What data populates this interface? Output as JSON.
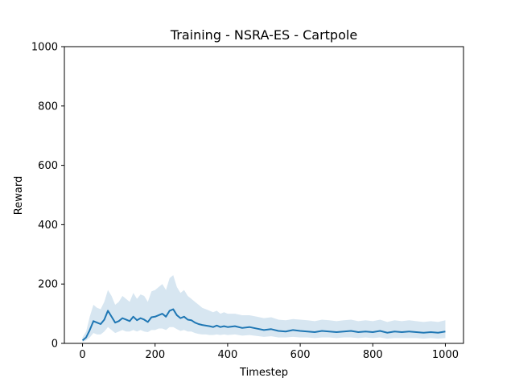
{
  "chart_data": {
    "type": "line",
    "title": "Training - NSRA-ES - Cartpole",
    "xlabel": "Timestep",
    "ylabel": "Reward",
    "xlim": [
      -50,
      1050
    ],
    "ylim": [
      0,
      1000
    ],
    "xticks": [
      0,
      200,
      400,
      600,
      800,
      1000
    ],
    "yticks": [
      0,
      200,
      400,
      600,
      800,
      1000
    ],
    "grid": false,
    "legend": "none",
    "series": [
      {
        "color": "#1f77b4",
        "band_color": "#1f77b4",
        "x": [
          0,
          10,
          20,
          30,
          40,
          50,
          60,
          70,
          80,
          90,
          100,
          110,
          120,
          130,
          140,
          150,
          160,
          170,
          180,
          190,
          200,
          210,
          220,
          230,
          240,
          250,
          260,
          270,
          280,
          290,
          300,
          310,
          320,
          330,
          340,
          350,
          360,
          370,
          380,
          390,
          400,
          420,
          440,
          460,
          480,
          500,
          520,
          540,
          560,
          580,
          600,
          620,
          640,
          660,
          680,
          700,
          720,
          740,
          760,
          780,
          800,
          820,
          840,
          860,
          880,
          900,
          920,
          940,
          960,
          980,
          1000
        ],
        "mean": [
          10,
          20,
          45,
          75,
          70,
          65,
          80,
          110,
          90,
          70,
          75,
          85,
          80,
          75,
          90,
          78,
          85,
          80,
          72,
          88,
          90,
          95,
          100,
          90,
          110,
          115,
          95,
          85,
          90,
          80,
          78,
          70,
          65,
          62,
          60,
          58,
          55,
          60,
          55,
          58,
          55,
          58,
          52,
          55,
          50,
          45,
          48,
          42,
          40,
          45,
          42,
          40,
          38,
          42,
          40,
          38,
          40,
          42,
          38,
          40,
          38,
          42,
          36,
          40,
          38,
          40,
          38,
          36,
          38,
          36,
          40
        ],
        "low": [
          5,
          10,
          20,
          35,
          30,
          30,
          40,
          55,
          45,
          35,
          40,
          45,
          40,
          40,
          45,
          40,
          45,
          40,
          38,
          45,
          45,
          50,
          50,
          45,
          55,
          55,
          48,
          42,
          45,
          40,
          40,
          35,
          32,
          30,
          30,
          28,
          28,
          30,
          28,
          30,
          28,
          30,
          26,
          28,
          25,
          22,
          24,
          20,
          20,
          22,
          20,
          20,
          18,
          20,
          20,
          18,
          20,
          20,
          18,
          20,
          18,
          20,
          16,
          18,
          18,
          18,
          18,
          16,
          18,
          16,
          18
        ],
        "high": [
          20,
          40,
          90,
          130,
          120,
          115,
          140,
          180,
          160,
          130,
          140,
          160,
          150,
          140,
          170,
          150,
          165,
          160,
          140,
          175,
          180,
          190,
          200,
          180,
          220,
          230,
          190,
          170,
          180,
          160,
          150,
          140,
          130,
          120,
          115,
          110,
          105,
          110,
          100,
          105,
          100,
          100,
          95,
          95,
          90,
          85,
          88,
          80,
          78,
          82,
          80,
          78,
          75,
          80,
          78,
          75,
          78,
          80,
          75,
          78,
          75,
          80,
          72,
          78,
          75,
          78,
          75,
          72,
          75,
          72,
          78
        ]
      }
    ]
  }
}
